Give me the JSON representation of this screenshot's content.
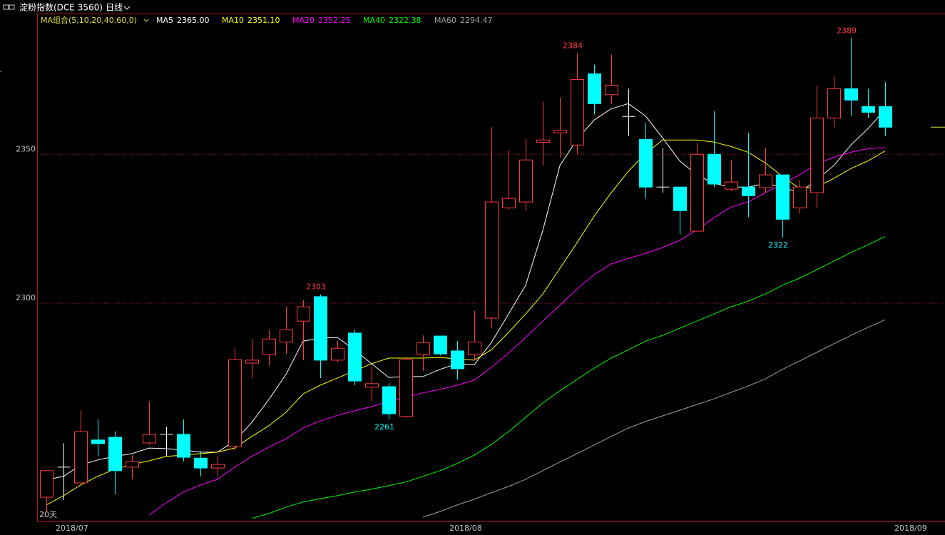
{
  "chart_data": {
    "type": "candlestick",
    "title": "淀粉指数(DCE 3560)",
    "period": "日线",
    "legend_title": "MA组合(5,10,20,40,60,0)",
    "note": "20天",
    "categories": [
      "2018/07",
      null,
      null,
      null,
      null,
      null,
      null,
      null,
      null,
      null,
      null,
      null,
      null,
      null,
      null,
      null,
      null,
      null,
      null,
      null,
      null,
      null,
      null,
      "2018/08",
      null,
      null,
      null,
      null,
      null,
      null,
      null,
      null,
      null,
      null,
      null,
      null,
      null,
      null,
      null,
      null,
      null,
      null,
      null,
      null,
      null,
      null,
      null,
      null,
      null,
      "2018/09"
    ],
    "open": [
      2234.9,
      2245,
      2239.7,
      2254.1,
      2255,
      2245,
      2253.1,
      2256,
      2256,
      2248,
      2244.7,
      2251.9,
      2279.9,
      2282.8,
      2287,
      2294,
      2302.2,
      2280.9,
      2290,
      2271.8,
      2272,
      2262,
      2282.8,
      2289,
      2284,
      2282.8,
      2295,
      2332,
      2334,
      2354,
      2357.2,
      2353.1,
      2377,
      2370,
      2362.7,
      2355,
      2339,
      2339,
      2324.2,
      2350,
      2338.3,
      2339,
      2338.8,
      2343.1,
      2332,
      2337.1,
      2362.2,
      2372,
      2366,
      2366
    ],
    "high": [
      2244,
      2253,
      2264.1,
      2261,
      2257,
      2249,
      2267,
      2258.6,
      2261,
      2250.5,
      2248.6,
      2284.9,
      2288,
      2291,
      2298.8,
      2301,
      2303,
      2287.3,
      2291.1,
      2279,
      2273.2,
      2282,
      2289.2,
      2289,
      2287.3,
      2297.4,
      2359.1,
      2351.4,
      2355.3,
      2367.7,
      2369.1,
      2384,
      2380.1,
      2383.5,
      2372,
      2360.5,
      2352.2,
      2339,
      2353.8,
      2364.4,
      2348.1,
      2357.2,
      2352.2,
      2343.1,
      2341.4,
      2373,
      2376.1,
      2389,
      2372,
      2374.2
    ],
    "low": [
      2230,
      2234,
      2239.5,
      2248.6,
      2235.9,
      2240.9,
      2252.6,
      2248.6,
      2246.9,
      2241.9,
      2241.9,
      2250.5,
      2274.9,
      2279,
      2283,
      2280.9,
      2274.9,
      2280.1,
      2272.5,
      2267,
      2261,
      2261.5,
      2277.3,
      2282.5,
      2274.4,
      2280.9,
      2291.6,
      2331.5,
      2331.1,
      2346.2,
      2349,
      2350.2,
      2363.4,
      2367,
      2356.2,
      2335.2,
      2337.1,
      2323.2,
      2324,
      2339,
      2337.6,
      2328.9,
      2337.1,
      2322,
      2330.1,
      2331.8,
      2359.1,
      2362.9,
      2362.2,
      2356.2
    ],
    "close": [
      2243.8,
      2245,
      2256.9,
      2252.9,
      2243.8,
      2246.9,
      2256,
      2256,
      2248.3,
      2244.7,
      2245.9,
      2281.1,
      2280.9,
      2288,
      2291.1,
      2298.8,
      2280.9,
      2284.9,
      2273.9,
      2273,
      2262.9,
      2281.1,
      2286.8,
      2283,
      2278,
      2287,
      2334,
      2335.2,
      2348.1,
      2354.8,
      2357.9,
      2375.1,
      2367,
      2373.2,
      2362.7,
      2339,
      2339,
      2331.1,
      2350,
      2340,
      2340.7,
      2336.1,
      2343.1,
      2328.2,
      2339,
      2362.2,
      2372,
      2368.2,
      2364.1,
      2359.1
    ],
    "labeled_highs": [
      16,
      31,
      47
    ],
    "labeled_lows": [
      20,
      43
    ],
    "up_color": "#ff3c3c",
    "down_color": "#00ffff",
    "flat_color": "#ffffff",
    "series": [
      {
        "name": "MA5",
        "color": "#ffffff",
        "values": [
          2240.7,
          2241.9,
          2245.7,
          2247.4,
          2248.6,
          2249.5,
          2251.4,
          2251.2,
          2250.7,
          2250,
          2250,
          2253.8,
          2260,
          2267.7,
          2276.1,
          2287.3,
          2288.3,
          2288.5,
          2284.4,
          2279.7,
          2275.1,
          2275.4,
          2275.4,
          2277.8,
          2279.7,
          2279.4,
          2286.8,
          2296.4,
          2306,
          2324.4,
          2346.2,
          2355,
          2361.5,
          2365.3,
          2367,
          2362.9,
          2355.5,
          2347.8,
          2343.1,
          2340.2,
          2339,
          2339,
          2340.2,
          2339,
          2337.1,
          2341.4,
          2346.2,
          2353.1,
          2358.6,
          2365
        ],
        "value_labels": [
          null,
          null,
          null,
          null,
          null,
          null,
          null,
          null,
          null,
          null,
          null,
          null,
          null,
          null,
          null,
          null,
          null,
          null,
          null,
          null,
          null,
          null,
          null,
          null,
          null,
          null,
          null,
          null,
          null,
          null,
          null,
          null,
          null,
          null,
          null,
          null,
          null,
          null,
          null,
          null,
          null,
          null,
          null,
          null,
          null,
          null,
          null,
          null,
          null,
          "2365.00"
        ]
      },
      {
        "name": "MA10",
        "color": "#ffff00",
        "values": [
          2232.3,
          2235.4,
          2239,
          2241.9,
          2244.3,
          2245.9,
          2247.1,
          2248.6,
          2249,
          2249.5,
          2250,
          2251.4,
          2255.3,
          2258.9,
          2263.4,
          2269.6,
          2272.5,
          2274.9,
          2277.3,
          2279.7,
          2281.6,
          2281.6,
          2281.6,
          2281.8,
          2281.3,
          2280.9,
          2284.4,
          2290.2,
          2296.4,
          2303.1,
          2311.7,
          2320.3,
          2329.2,
          2337.1,
          2344.3,
          2350.2,
          2354.8,
          2354.8,
          2354.8,
          2354.1,
          2352.6,
          2350.7,
          2347.1,
          2342.6,
          2338.5,
          2339,
          2341.9,
          2345.2,
          2347.8,
          2351.1
        ],
        "value_labels": [
          null,
          null,
          null,
          null,
          null,
          null,
          null,
          null,
          null,
          null,
          null,
          null,
          null,
          null,
          null,
          null,
          null,
          null,
          null,
          null,
          null,
          null,
          null,
          null,
          null,
          null,
          null,
          null,
          null,
          null,
          null,
          null,
          null,
          null,
          null,
          null,
          null,
          null,
          null,
          null,
          null,
          null,
          null,
          null,
          null,
          null,
          null,
          null,
          null,
          "2351.10"
        ]
      },
      {
        "name": "MA20",
        "color": "#ff00ff",
        "values": [
          null,
          null,
          null,
          null,
          null,
          null,
          2228.9,
          2233,
          2236.6,
          2239,
          2240.9,
          2245,
          2248.6,
          2251.7,
          2254.5,
          2258.1,
          2260.5,
          2262.4,
          2263.9,
          2265.3,
          2267,
          2268.4,
          2269.9,
          2271.1,
          2272.5,
          2274.2,
          2278.5,
          2283.3,
          2288.5,
          2294,
          2299.3,
          2304.8,
          2309.6,
          2313.2,
          2315.1,
          2316.7,
          2318.7,
          2321.1,
          2324.6,
          2328.7,
          2332.3,
          2334,
          2337.1,
          2340,
          2343.1,
          2346.7,
          2349,
          2350.7,
          2351.9,
          2352.25
        ],
        "value_labels": [
          null,
          null,
          null,
          null,
          null,
          null,
          null,
          null,
          null,
          null,
          null,
          null,
          null,
          null,
          null,
          null,
          null,
          null,
          null,
          null,
          null,
          null,
          null,
          null,
          null,
          null,
          null,
          null,
          null,
          null,
          null,
          null,
          null,
          null,
          null,
          null,
          null,
          null,
          null,
          null,
          null,
          null,
          null,
          null,
          null,
          null,
          null,
          null,
          null,
          "2352.25"
        ]
      },
      {
        "name": "MA40",
        "color": "#00ff00",
        "values": [
          null,
          null,
          null,
          null,
          null,
          null,
          null,
          null,
          null,
          null,
          null,
          null,
          2227.8,
          2229.4,
          2231.6,
          2233.3,
          2234.4,
          2235.4,
          2236.6,
          2237.6,
          2238.8,
          2240,
          2241.9,
          2243.8,
          2246.2,
          2249,
          2252.6,
          2256.9,
          2261.7,
          2266.5,
          2270.6,
          2274.4,
          2278.2,
          2281.6,
          2284.4,
          2287.3,
          2289.2,
          2291.6,
          2294,
          2296.4,
          2298.8,
          2300.7,
          2303.1,
          2306,
          2308.4,
          2311.2,
          2314.1,
          2317,
          2319.6,
          2322.38
        ],
        "value_labels": [
          null,
          null,
          null,
          null,
          null,
          null,
          null,
          null,
          null,
          null,
          null,
          null,
          null,
          null,
          null,
          null,
          null,
          null,
          null,
          null,
          null,
          null,
          null,
          null,
          null,
          null,
          null,
          null,
          null,
          null,
          null,
          null,
          null,
          null,
          null,
          null,
          null,
          null,
          null,
          null,
          null,
          null,
          null,
          null,
          null,
          null,
          null,
          null,
          null,
          "2322.38"
        ]
      },
      {
        "name": "MA60",
        "color": "#a0a0a0",
        "values": [
          null,
          null,
          null,
          null,
          null,
          null,
          null,
          null,
          null,
          null,
          null,
          null,
          null,
          null,
          null,
          null,
          null,
          null,
          null,
          null,
          null,
          null,
          2228.2,
          2230.1,
          2232.3,
          2234.2,
          2236.4,
          2238.5,
          2240.9,
          2243.8,
          2246.7,
          2249.5,
          2252.4,
          2255.3,
          2258.1,
          2260.3,
          2262.2,
          2264.1,
          2266,
          2267.9,
          2270.1,
          2272.2,
          2274.6,
          2277.8,
          2280.6,
          2283.5,
          2286.4,
          2289.2,
          2291.9,
          2294.47
        ],
        "value_labels": [
          null,
          null,
          null,
          null,
          null,
          null,
          null,
          null,
          null,
          null,
          null,
          null,
          null,
          null,
          null,
          null,
          null,
          null,
          null,
          null,
          null,
          null,
          null,
          null,
          null,
          null,
          null,
          null,
          null,
          null,
          null,
          null,
          null,
          null,
          null,
          null,
          null,
          null,
          null,
          null,
          null,
          null,
          null,
          null,
          null,
          null,
          null,
          null,
          null,
          "2294.47"
        ]
      }
    ],
    "ylim": [
      2227,
      2397
    ],
    "yticks": [
      2300,
      2350
    ],
    "grid": true
  }
}
